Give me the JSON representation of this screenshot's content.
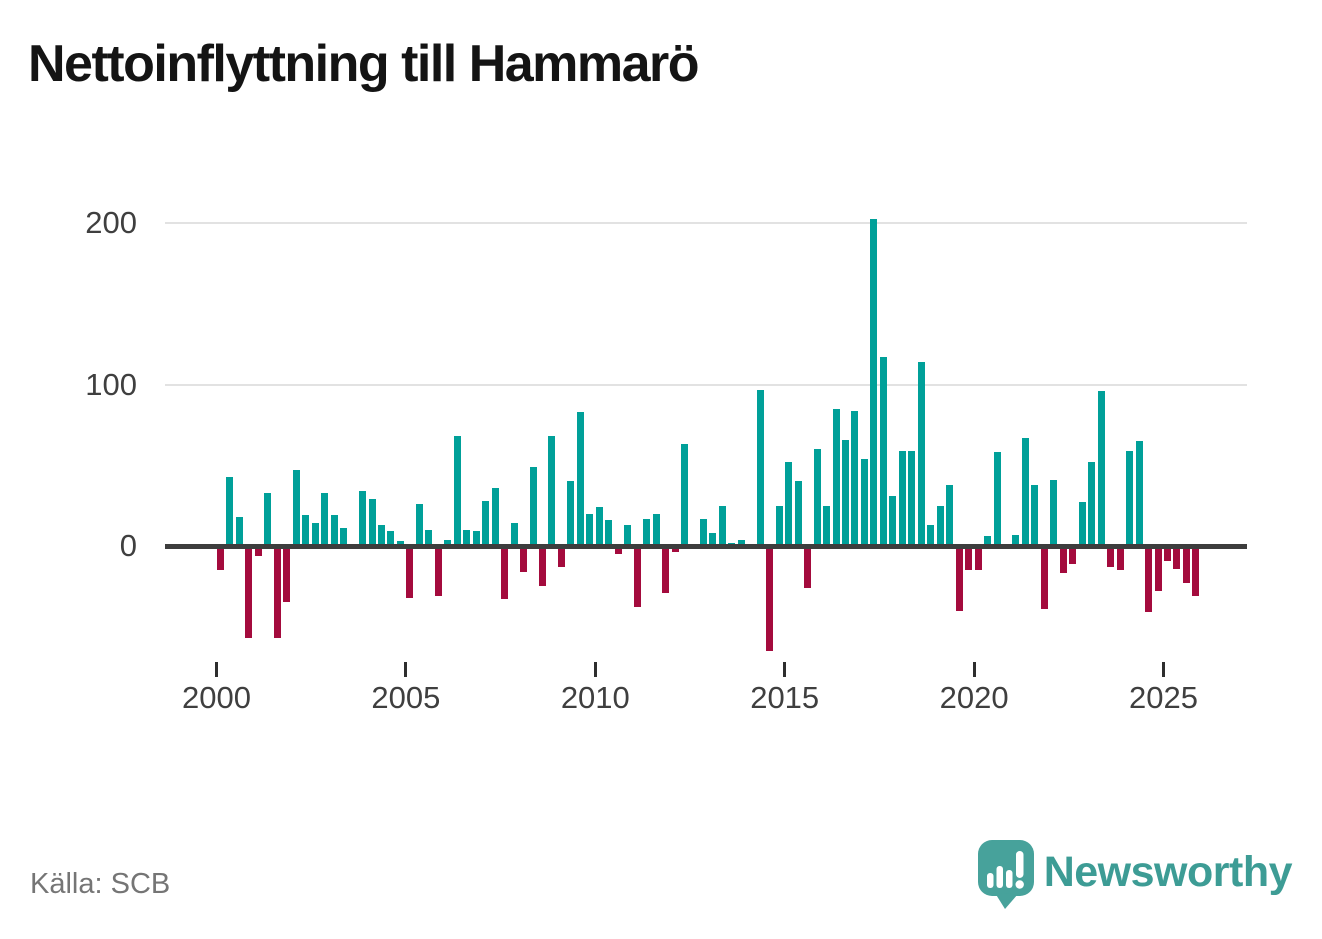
{
  "title": "Nettoinflyttning till Hammarö",
  "source": "Källa: SCB",
  "branding": {
    "logo_icon": "speech-bubble-bar-chart-icon",
    "logo_text": "Newsworthy",
    "logo_color": "#3d9c95"
  },
  "chart_data": {
    "type": "bar",
    "title": "Nettoinflyttning till Hammarö",
    "frequency": "quarterly",
    "x_tick_labels": [
      "2000",
      "2005",
      "2010",
      "2015",
      "2020",
      "2025"
    ],
    "y_tick_labels": [
      "0",
      "100",
      "200"
    ],
    "y_ticks": [
      0,
      100,
      200
    ],
    "ylim": [
      -80,
      220
    ],
    "grid": "horizontal",
    "legend": "none",
    "colors": {
      "positive": "#00a099",
      "negative": "#a40b3d"
    },
    "series": [
      {
        "year": 2000,
        "quarters": [
          -15,
          43,
          18,
          -57
        ]
      },
      {
        "year": 2001,
        "quarters": [
          -6,
          33,
          -57,
          -35
        ]
      },
      {
        "year": 2002,
        "quarters": [
          47,
          19,
          14,
          33
        ]
      },
      {
        "year": 2003,
        "quarters": [
          19,
          11,
          0,
          34
        ]
      },
      {
        "year": 2004,
        "quarters": [
          29,
          13,
          9,
          3
        ]
      },
      {
        "year": 2005,
        "quarters": [
          -32,
          26,
          10,
          -31
        ]
      },
      {
        "year": 2006,
        "quarters": [
          4,
          68,
          10,
          9
        ]
      },
      {
        "year": 2007,
        "quarters": [
          28,
          36,
          -33,
          14
        ]
      },
      {
        "year": 2008,
        "quarters": [
          -16,
          49,
          -25,
          68
        ]
      },
      {
        "year": 2009,
        "quarters": [
          -13,
          40,
          83,
          20
        ]
      },
      {
        "year": 2010,
        "quarters": [
          24,
          16,
          -5,
          13
        ]
      },
      {
        "year": 2011,
        "quarters": [
          -38,
          17,
          20,
          -29
        ]
      },
      {
        "year": 2012,
        "quarters": [
          -4,
          63,
          0,
          17
        ]
      },
      {
        "year": 2013,
        "quarters": [
          8,
          25,
          2,
          4
        ]
      },
      {
        "year": 2014,
        "quarters": [
          0,
          97,
          -65,
          25
        ]
      },
      {
        "year": 2015,
        "quarters": [
          52,
          40,
          -26,
          60
        ]
      },
      {
        "year": 2016,
        "quarters": [
          25,
          85,
          66,
          84
        ]
      },
      {
        "year": 2017,
        "quarters": [
          54,
          203,
          117,
          31
        ]
      },
      {
        "year": 2018,
        "quarters": [
          59,
          59,
          114,
          13
        ]
      },
      {
        "year": 2019,
        "quarters": [
          25,
          38,
          -40,
          -15
        ]
      },
      {
        "year": 2020,
        "quarters": [
          -15,
          6,
          58,
          0
        ]
      },
      {
        "year": 2021,
        "quarters": [
          7,
          67,
          38,
          -39
        ]
      },
      {
        "year": 2022,
        "quarters": [
          41,
          -17,
          -11,
          27
        ]
      },
      {
        "year": 2023,
        "quarters": [
          52,
          96,
          -13,
          -15
        ]
      },
      {
        "year": 2024,
        "quarters": [
          59,
          65,
          -41,
          -28
        ]
      },
      {
        "year": 2025,
        "quarters": [
          -9,
          -14,
          -23,
          -31
        ]
      }
    ]
  }
}
